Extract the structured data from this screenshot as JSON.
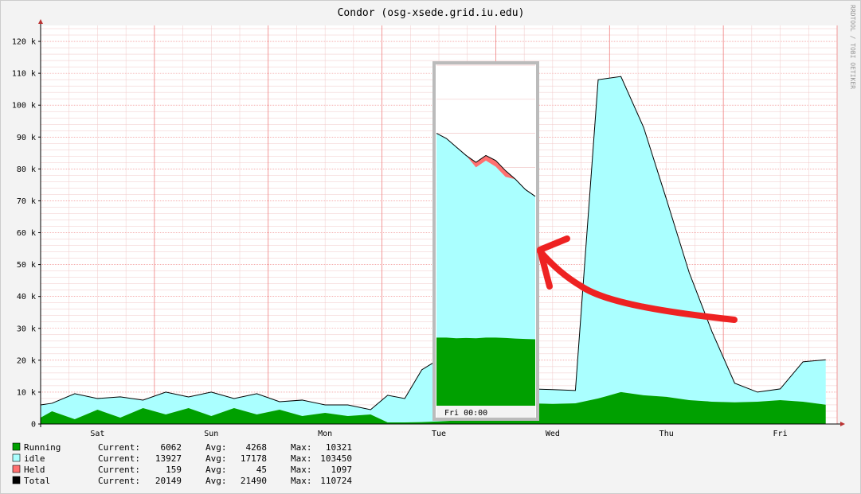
{
  "chart_data": {
    "type": "area",
    "title": "Condor (osg-xsede.grid.iu.edu)",
    "watermark": "RRDTOOL / TOBI OETIKER",
    "xlabel": "",
    "ylabel": "",
    "ylim": [
      0,
      125000
    ],
    "ytick_values": [
      0,
      10000,
      20000,
      30000,
      40000,
      50000,
      60000,
      70000,
      80000,
      90000,
      100000,
      110000,
      120000
    ],
    "ytick_labels": [
      "0",
      "10 k",
      "20 k",
      "30 k",
      "40 k",
      "50 k",
      "60 k",
      "70 k",
      "80 k",
      "90 k",
      "100 k",
      "110 k",
      "120 k"
    ],
    "x_unit": "days",
    "xlim": [
      0,
      7
    ],
    "x_ticks": [
      {
        "x": 0.5,
        "label": "Sat"
      },
      {
        "x": 1.5,
        "label": "Sun"
      },
      {
        "x": 2.5,
        "label": "Mon"
      },
      {
        "x": 3.5,
        "label": "Tue"
      },
      {
        "x": 4.5,
        "label": "Wed"
      },
      {
        "x": 5.5,
        "label": "Thu"
      },
      {
        "x": 6.5,
        "label": "Fri"
      }
    ],
    "grid": true,
    "colors": {
      "running": "#00a000",
      "idle": "#aaffff",
      "held": "#ff7070",
      "total": "#000000",
      "grid_minor": "#f0c8c8",
      "grid_major": "#f08080",
      "background": "#ffffff",
      "canvas": "#f3f3f3",
      "annotation_arrow": "#ee2222",
      "inset_border": "#bbbbbb"
    },
    "series": [
      {
        "name": "Running",
        "x": [
          0,
          0.1,
          0.3,
          0.5,
          0.7,
          0.9,
          1.1,
          1.3,
          1.5,
          1.7,
          1.9,
          2.1,
          2.3,
          2.5,
          2.7,
          2.9,
          3.05,
          3.2,
          3.35,
          3.5,
          3.7,
          3.9,
          4.1,
          4.3,
          4.5,
          4.7,
          4.9,
          5.1,
          5.3,
          5.5,
          5.7,
          5.9,
          6.1,
          6.3,
          6.5,
          6.7,
          6.9
        ],
        "values": [
          2000,
          4000,
          1500,
          4500,
          2000,
          5000,
          3000,
          5000,
          2500,
          5000,
          3000,
          4500,
          2500,
          3500,
          2500,
          3000,
          500,
          500,
          600,
          800,
          1200,
          5000,
          6000,
          6500,
          6300,
          6500,
          8000,
          10000,
          9000,
          8500,
          7500,
          7000,
          6800,
          7000,
          7500,
          7000,
          6062
        ]
      },
      {
        "name": "idle",
        "x": [
          0,
          0.1,
          0.3,
          0.5,
          0.7,
          0.9,
          1.1,
          1.3,
          1.5,
          1.7,
          1.9,
          2.1,
          2.3,
          2.5,
          2.7,
          2.9,
          3.05,
          3.2,
          3.35,
          3.5,
          3.7,
          3.9,
          4.1,
          4.3,
          4.5,
          4.7,
          4.9,
          5.1,
          5.3,
          5.5,
          5.7,
          5.9,
          6.1,
          6.3,
          6.5,
          6.7,
          6.9
        ],
        "values": [
          4000,
          2500,
          8000,
          3500,
          6500,
          2500,
          7000,
          3500,
          7500,
          3000,
          6500,
          2500,
          5000,
          2500,
          3500,
          1500,
          8500,
          7500,
          16500,
          19500,
          17000,
          15000,
          5000,
          4500,
          4500,
          4000,
          100000,
          99000,
          84000,
          62000,
          40000,
          22000,
          6000,
          3000,
          3500,
          12500,
          13927
        ]
      },
      {
        "name": "Held",
        "x": [
          0,
          3.7,
          3.75,
          3.8,
          3.85,
          6.4,
          6.9
        ],
        "values": [
          0,
          0,
          1097,
          1097,
          0,
          0,
          159
        ]
      },
      {
        "name": "Total",
        "x": [
          0,
          0.1,
          0.3,
          0.5,
          0.7,
          0.9,
          1.1,
          1.3,
          1.5,
          1.7,
          1.9,
          2.1,
          2.3,
          2.5,
          2.7,
          2.9,
          3.05,
          3.2,
          3.35,
          3.5,
          3.7,
          3.9,
          4.1,
          4.3,
          4.5,
          4.7,
          4.9,
          5.1,
          5.3,
          5.5,
          5.7,
          5.9,
          6.1,
          6.3,
          6.5,
          6.7,
          6.9
        ],
        "values": [
          6000,
          6500,
          9500,
          8000,
          8500,
          7500,
          10000,
          8500,
          10000,
          8000,
          9500,
          7000,
          7500,
          6000,
          6000,
          4500,
          9000,
          8000,
          17000,
          20300,
          18200,
          20000,
          11000,
          11000,
          10800,
          10500,
          108000,
          109000,
          93000,
          70500,
          47500,
          29000,
          12800,
          10000,
          11000,
          19500,
          20149
        ]
      }
    ],
    "legend": {
      "placement": "bottom-left",
      "rows": [
        {
          "label": "Running",
          "current_label": "Current:",
          "current": "6062",
          "avg_label": "Avg:",
          "avg": "4268",
          "max_label": "Max:",
          "max": "10321"
        },
        {
          "label": "idle",
          "current_label": "Current:",
          "current": "13927",
          "avg_label": "Avg:",
          "avg": "17178",
          "max_label": "Max:",
          "max": "103450"
        },
        {
          "label": "Held",
          "current_label": "Current:",
          "current": "159",
          "avg_label": "Avg:",
          "avg": "45",
          "max_label": "Max:",
          "max": "1097"
        },
        {
          "label": "Total",
          "current_label": "Current:",
          "current": "20149",
          "avg_label": "Avg:",
          "avg": "21490",
          "max_label": "Max:",
          "max": "110724"
        }
      ]
    },
    "inset": {
      "tick_label": "Fri 00:00",
      "ylim": [
        0,
        100000
      ],
      "x": [
        0,
        0.1,
        0.2,
        0.3,
        0.4,
        0.5,
        0.6,
        0.7,
        0.8,
        0.9,
        1.0
      ],
      "running": [
        20000,
        20000,
        19800,
        19900,
        19800,
        20000,
        20000,
        19900,
        19700,
        19600,
        19500
      ],
      "held": [
        0,
        0,
        0,
        0,
        1500,
        1500,
        1800,
        1800,
        0,
        0,
        0
      ],
      "total": [
        80000,
        78500,
        76000,
        73500,
        71500,
        73500,
        72000,
        69000,
        66500,
        63500,
        61500
      ]
    }
  }
}
